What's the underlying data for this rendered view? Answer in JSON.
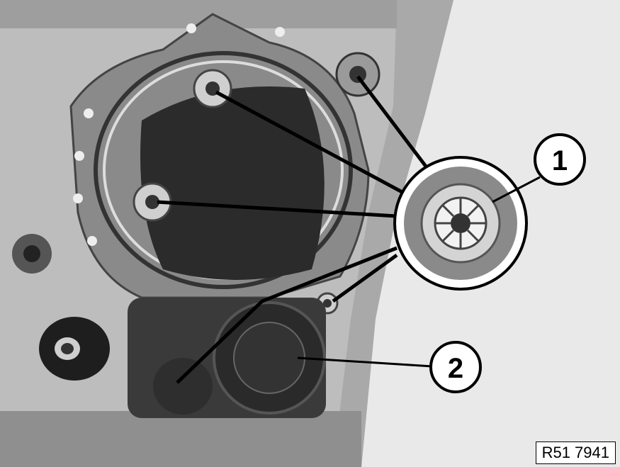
{
  "figure": {
    "callouts": [
      {
        "number": "1",
        "target": "clip-nut"
      },
      {
        "number": "2",
        "target": "window-regulator-motor"
      }
    ],
    "reference_code": "R51 7941"
  }
}
